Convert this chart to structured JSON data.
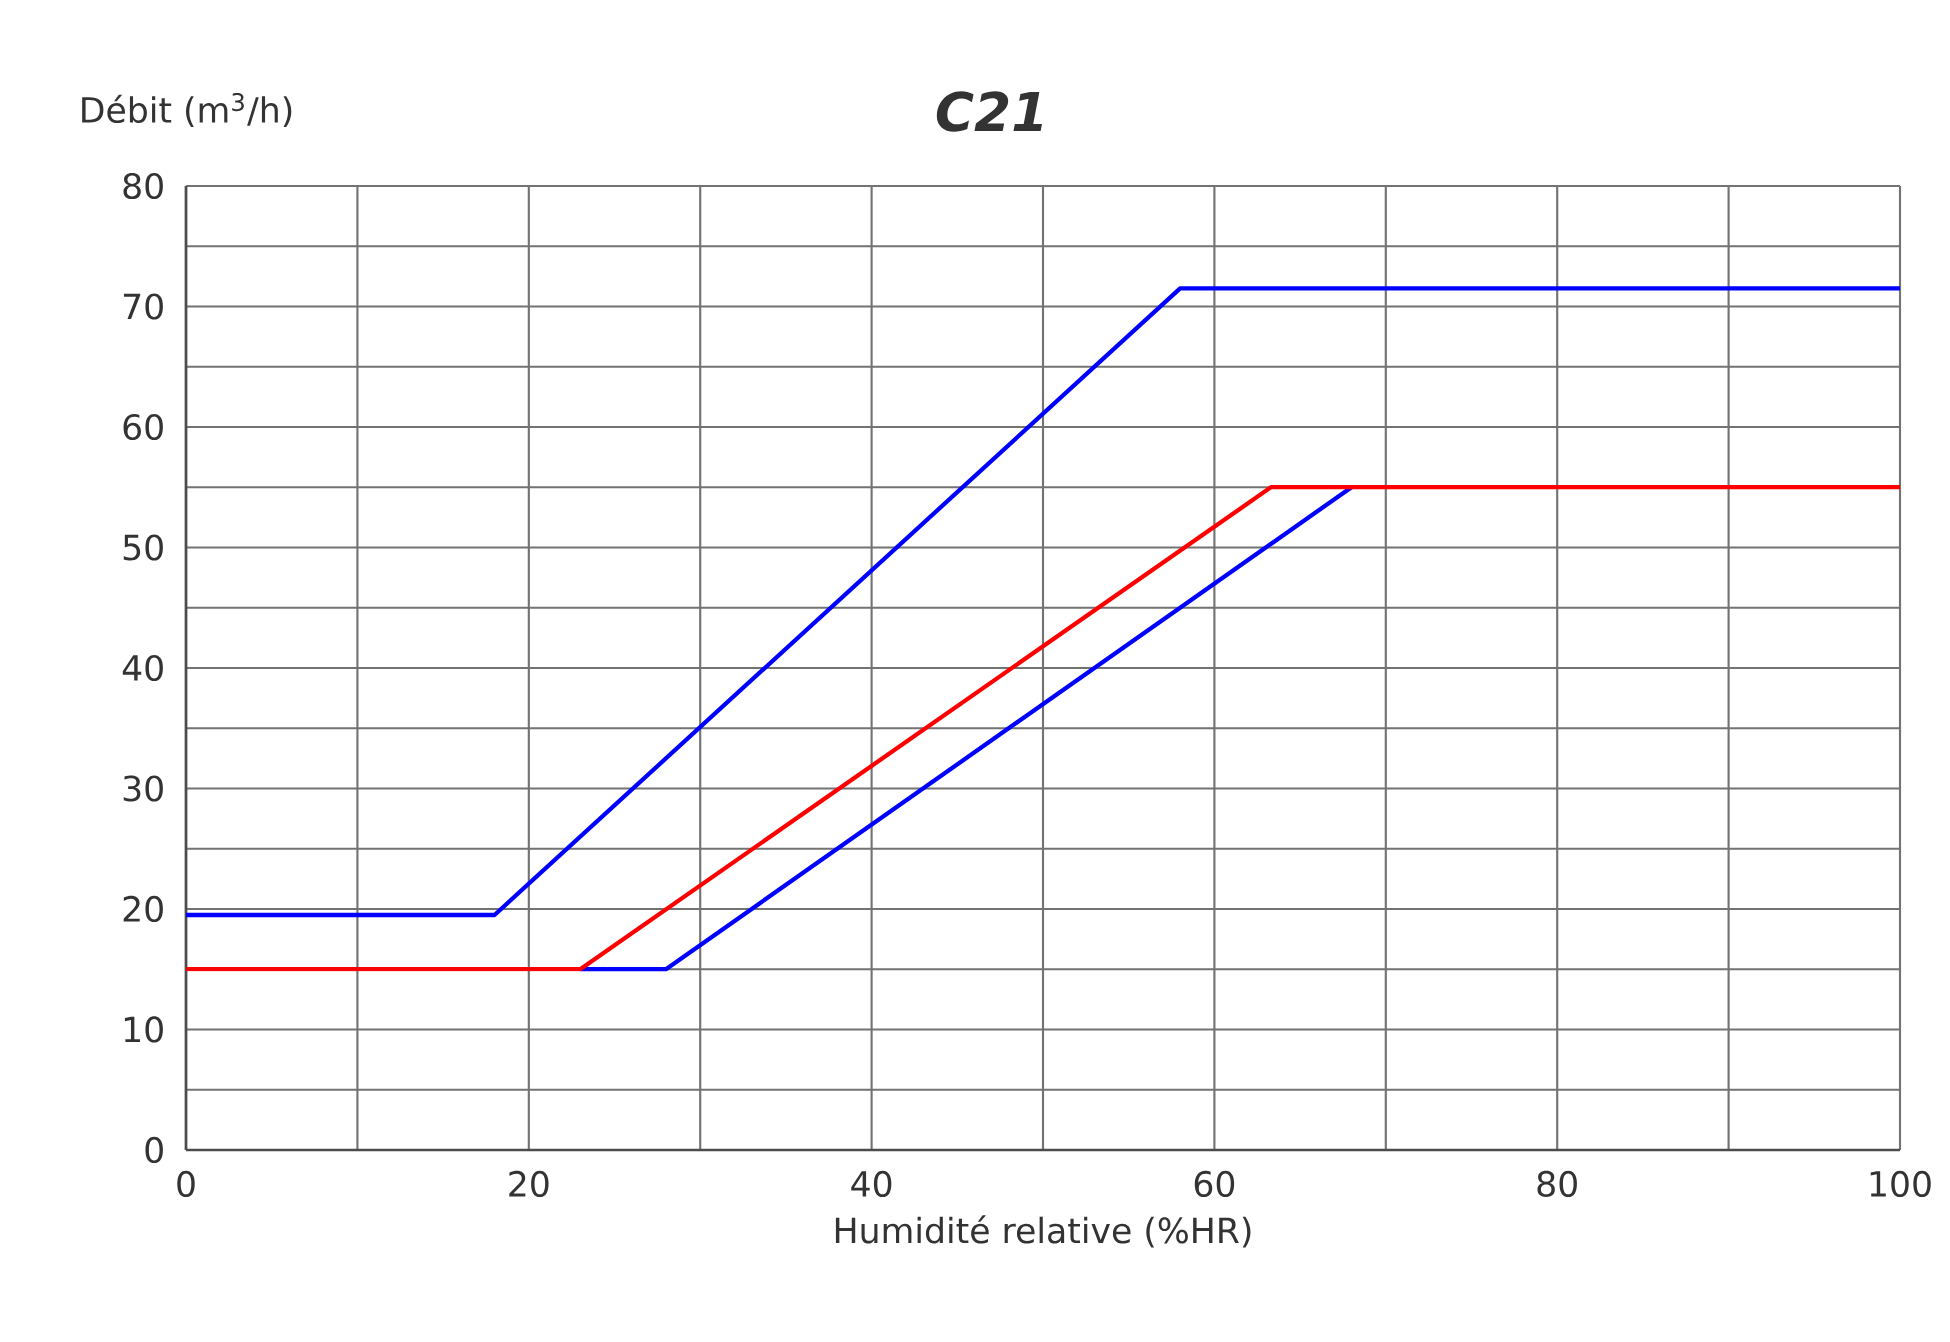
{
  "chart_data": {
    "type": "line",
    "title": "C21",
    "ylabel": "Débit (m$^{3}$/h)",
    "xlabel": "Humidité relative (%HR)",
    "series": [
      {
        "color": "#0000ff",
        "x": [
          0,
          18,
          58,
          100
        ],
        "values": [
          19.5,
          19.5,
          71.5,
          71.5
        ]
      },
      {
        "color": "#0000ff",
        "x": [
          23,
          28,
          68
        ],
        "values": [
          15,
          15,
          55
        ]
      },
      {
        "color": "#ff0000",
        "x": [
          0,
          23,
          63.3,
          100
        ],
        "values": [
          15,
          15,
          55,
          55
        ]
      }
    ],
    "xlim": [
      0,
      100
    ],
    "ylim": [
      0,
      80
    ],
    "xticks": [
      0,
      {
        "value": 10,
        "label": null
      },
      20,
      {
        "value": 30,
        "label": null
      },
      40,
      {
        "value": 50,
        "label": null
      },
      60,
      {
        "value": 70,
        "label": null
      },
      80,
      {
        "value": 90,
        "label": null
      },
      100
    ],
    "yticks": [
      0,
      {
        "value": 5,
        "label": null
      },
      10,
      {
        "value": 15,
        "label": null
      },
      20,
      {
        "value": 25,
        "label": null
      },
      30,
      {
        "value": 35,
        "label": null
      },
      40,
      {
        "value": 45,
        "label": null
      },
      50,
      {
        "value": 55,
        "label": null
      },
      60,
      {
        "value": 65,
        "label": null
      },
      70,
      {
        "value": 75,
        "label": null
      },
      80
    ],
    "grid": true,
    "marker": "none",
    "line_style": "solid"
  }
}
